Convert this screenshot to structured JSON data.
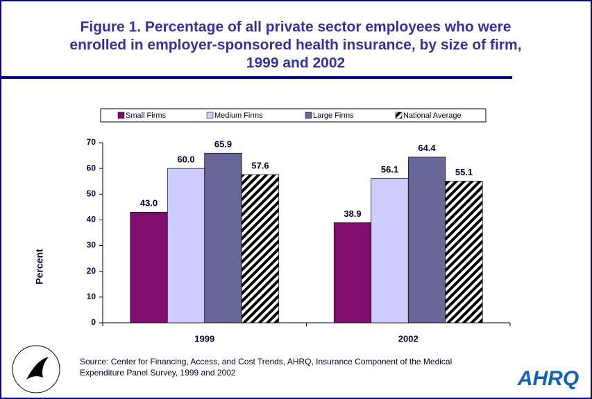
{
  "chart_data": {
    "type": "bar",
    "title": [
      "Figure 1. Percentage of all private sector  employees who were",
      "enrolled in employer-sponsored health insurance, by size of firm,",
      "1999 and 2002"
    ],
    "ylabel": "Percent",
    "categories": [
      "1999",
      "2002"
    ],
    "series": [
      {
        "name": "Small Firms",
        "color": "#7f0f6f",
        "values": [
          43.0,
          38.9
        ],
        "value_labels": [
          "43.0",
          "38.9"
        ]
      },
      {
        "name": "Medium Firms",
        "color": "#ccccff",
        "values": [
          60.0,
          56.1
        ],
        "value_labels": [
          "60.0",
          "56.1"
        ]
      },
      {
        "name": "Large Firms",
        "color": "#666699",
        "values": [
          65.9,
          64.4
        ],
        "value_labels": [
          "65.9",
          "64.4"
        ]
      },
      {
        "name": "National Average",
        "color": "#7f0f6f",
        "hatch": true,
        "values": [
          57.6,
          55.1
        ],
        "value_labels": [
          "57.6",
          "55.1"
        ]
      }
    ],
    "ylim": [
      0,
      70
    ],
    "yticks": [
      0,
      10,
      20,
      30,
      40,
      50,
      60,
      70
    ],
    "legend": "top",
    "source": [
      "Source: Center for Financing, Access, and Cost Trends, AHRQ, Insurance Component of the Medical",
      "Expenditure Panel Survey, 1999 and 2002"
    ],
    "logo": "AHRQ"
  }
}
